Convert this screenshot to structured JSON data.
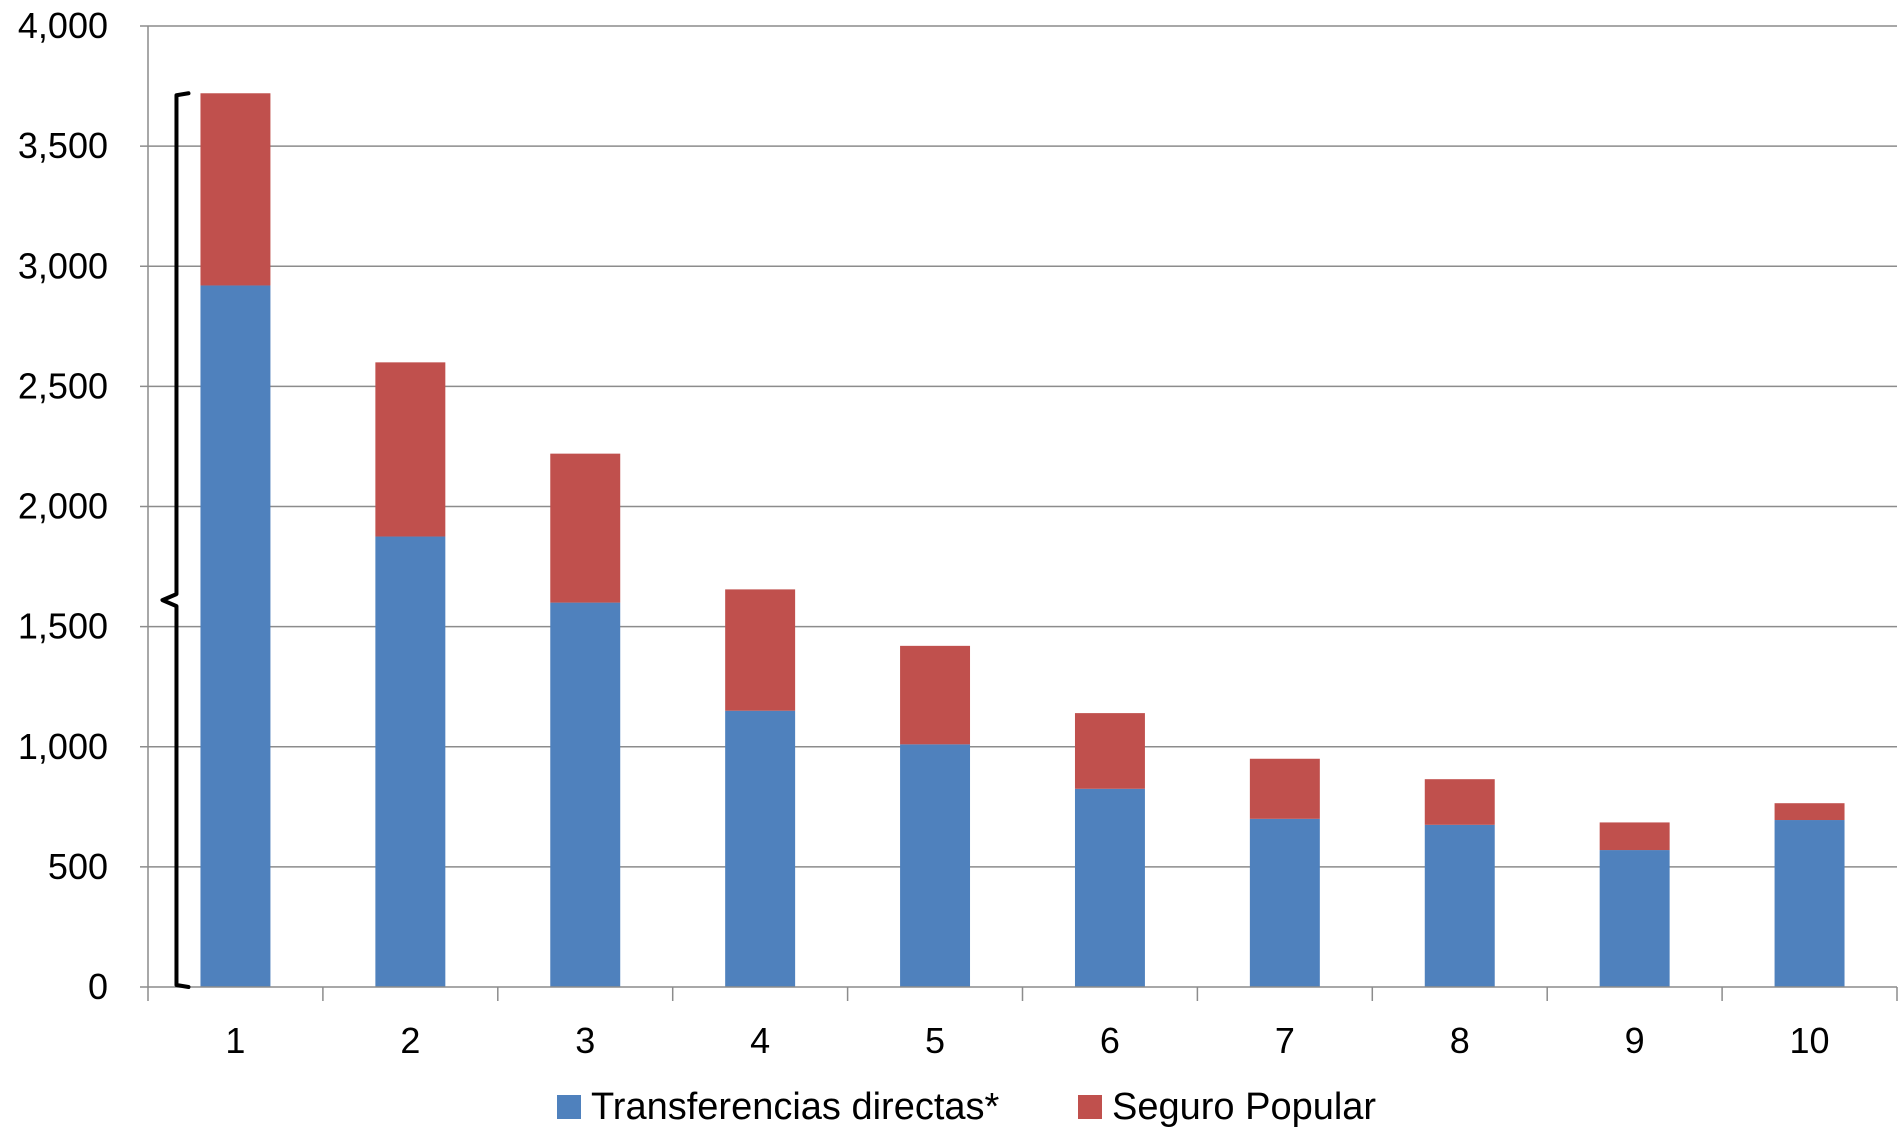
{
  "chart_data": {
    "type": "bar",
    "stacked": true,
    "categories": [
      "1",
      "2",
      "3",
      "4",
      "5",
      "6",
      "7",
      "8",
      "9",
      "10"
    ],
    "series": [
      {
        "name": "Transferencias directas*",
        "color": "#4f81bd",
        "values": [
          2920,
          1875,
          1600,
          1150,
          1010,
          825,
          700,
          675,
          570,
          695
        ]
      },
      {
        "name": "Seguro Popular",
        "color": "#c0504d",
        "values": [
          800,
          725,
          620,
          505,
          410,
          315,
          250,
          190,
          115,
          70
        ]
      }
    ],
    "ylim": [
      0,
      4000
    ],
    "yticks": [
      0,
      500,
      1000,
      1500,
      2000,
      2500,
      3000,
      3500,
      4000
    ],
    "ytick_labels": [
      "0",
      "500",
      "1,000",
      "1,500",
      "2,000",
      "2,500",
      "3,000",
      "3,500",
      "4,000"
    ],
    "grid": true,
    "legend_position": "bottom",
    "annotations": [
      {
        "type": "brace",
        "category": "1",
        "from": 0,
        "to": 3720
      }
    ],
    "title": "",
    "xlabel": "",
    "ylabel": ""
  }
}
